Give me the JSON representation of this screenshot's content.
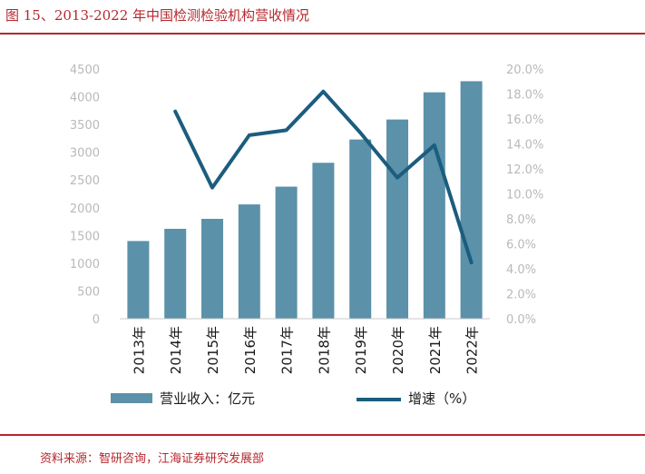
{
  "figure": {
    "title": "图 15、2013-2022 年中国检测检验机构营收情况",
    "source": "资料来源：智研咨询，江海证券研究发展部"
  },
  "colors": {
    "bar": "#5b91a9",
    "line": "#1b5d7e",
    "accent_red": "#b5282e",
    "tick": "#b9b9b9"
  },
  "chart_data": {
    "type": "bar+line",
    "categories": [
      "2013年",
      "2014年",
      "2015年",
      "2016年",
      "2017年",
      "2018年",
      "2019年",
      "2020年",
      "2021年",
      "2022年"
    ],
    "series": [
      {
        "name": "营业收入：亿元",
        "type": "bar",
        "axis": "left",
        "values": [
          1400,
          1620,
          1800,
          2060,
          2380,
          2810,
          3230,
          3590,
          4080,
          4280
        ]
      },
      {
        "name": "增速（%）",
        "type": "line",
        "axis": "right",
        "values": [
          null,
          16.6,
          10.5,
          14.7,
          15.1,
          18.2,
          14.9,
          11.3,
          13.9,
          4.5
        ]
      }
    ],
    "y_left": {
      "ylim": [
        0,
        4500
      ],
      "ticks": [
        "0",
        "500",
        "1000",
        "1500",
        "2000",
        "2500",
        "3000",
        "3500",
        "4000",
        "4500"
      ]
    },
    "y_right": {
      "ylim": [
        0,
        20
      ],
      "ticks": [
        "0.0%",
        "2.0%",
        "4.0%",
        "6.0%",
        "8.0%",
        "10.0%",
        "12.0%",
        "14.0%",
        "16.0%",
        "18.0%",
        "20.0%"
      ]
    },
    "grid": false,
    "legend_position": "bottom"
  }
}
